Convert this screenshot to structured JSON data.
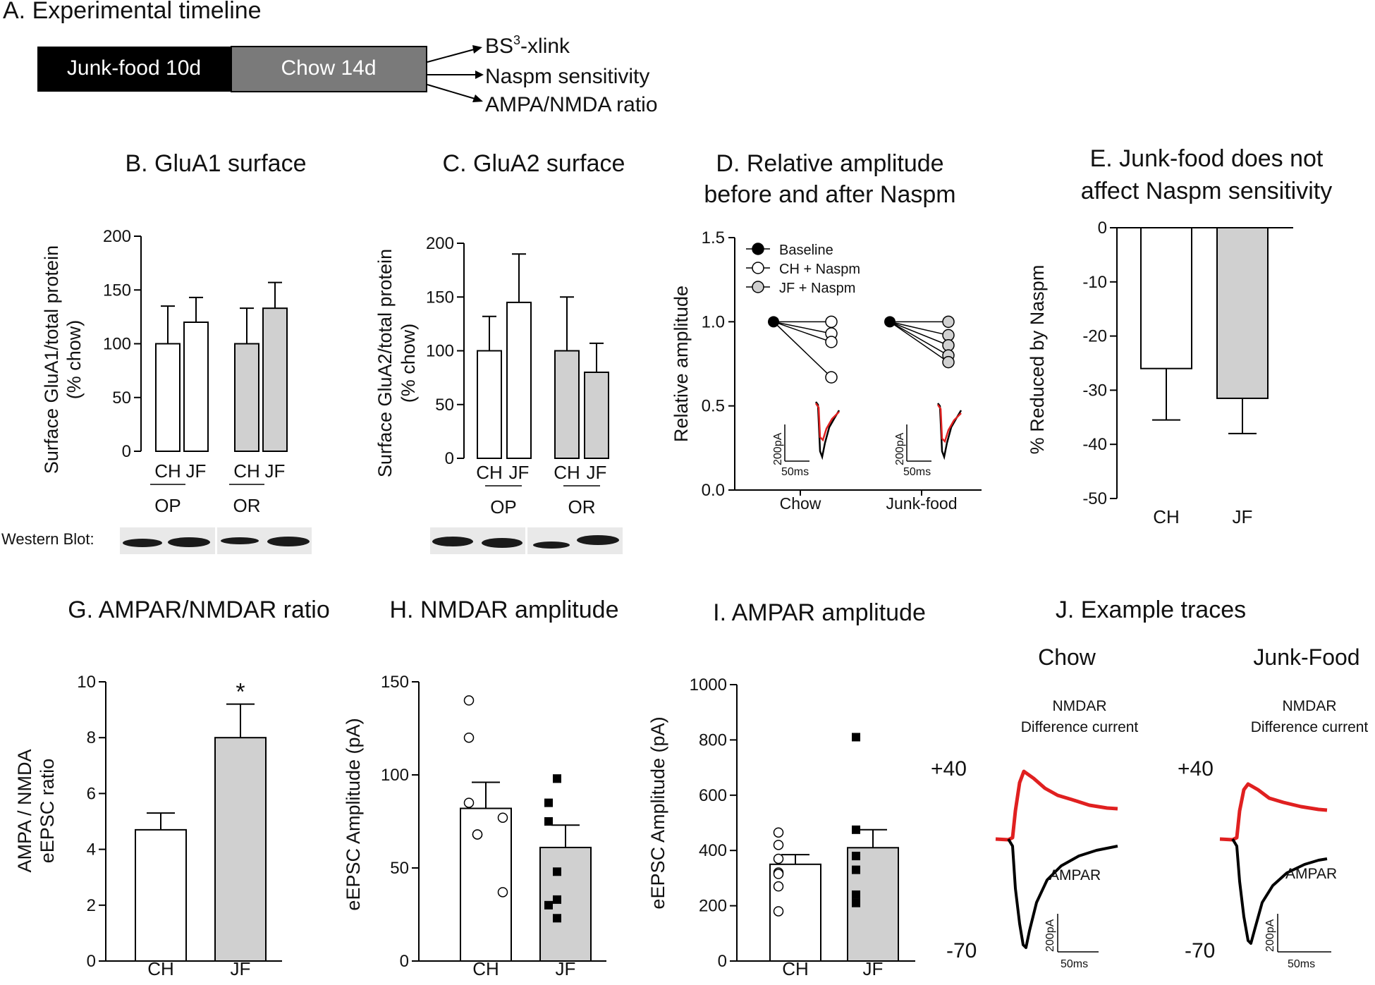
{
  "colors": {
    "white_bar": "#ffffff",
    "gray_bar": "#d0d0d0",
    "junk": "#000000",
    "chow": "#7a7a7a",
    "red_trace": "#e02020",
    "black_trace": "#000000"
  },
  "timeline": {
    "title": "A. Experimental timeline",
    "junk_label": "Junk-food 10d",
    "chow_label": "Chow 14d",
    "outcomes": [
      {
        "base": "BS",
        "sup": "3",
        "rest": "-xlink"
      },
      {
        "base": "Naspm sensitivity",
        "sup": "",
        "rest": ""
      },
      {
        "base": "AMPA/NMDA ratio",
        "sup": "",
        "rest": ""
      }
    ]
  },
  "western_label": "Western Blot:",
  "chart_data": [
    {
      "id": "B",
      "type": "bar",
      "title": "B. GluA1 surface",
      "ylabel": [
        "Surface GluA1/total protein",
        "(% chow)"
      ],
      "ylim": [
        0,
        200
      ],
      "yticks": [
        0,
        50,
        100,
        150,
        200
      ],
      "categories": [
        "CH",
        "JF",
        "CH",
        "JF"
      ],
      "groups": [
        "OP",
        "OR"
      ],
      "values": [
        100,
        120,
        100,
        133
      ],
      "errors": [
        35,
        23,
        33,
        24
      ],
      "fills": [
        "white",
        "white",
        "gray",
        "gray"
      ]
    },
    {
      "id": "C",
      "type": "bar",
      "title": "C. GluA2 surface",
      "ylabel": [
        "Surface GluA2/total protein",
        "(% chow)"
      ],
      "ylim": [
        0,
        200
      ],
      "yticks": [
        0,
        50,
        100,
        150,
        200
      ],
      "categories": [
        "CH",
        "JF",
        "CH",
        "JF"
      ],
      "groups": [
        "OP",
        "OR"
      ],
      "values": [
        100,
        145,
        100,
        80
      ],
      "errors": [
        32,
        45,
        50,
        27
      ],
      "fills": [
        "white",
        "white",
        "gray",
        "gray"
      ]
    },
    {
      "id": "D",
      "type": "line",
      "title": [
        "D. Relative amplitude",
        "before and after Naspm"
      ],
      "ylabel": "Relative amplitude",
      "ylim": [
        0,
        1.5
      ],
      "yticks": [
        "0.0",
        "0.5",
        "1.0",
        "1.5"
      ],
      "categories": [
        "Chow",
        "Junk-food"
      ],
      "legend": [
        "Baseline",
        "CH + Naspm",
        "JF + Naspm"
      ],
      "series": [
        {
          "name": "CH + Naspm",
          "baseline": 1.0,
          "after": [
            1.0,
            0.93,
            0.88,
            0.67
          ]
        },
        {
          "name": "JF + Naspm",
          "baseline": 1.0,
          "after": [
            1.0,
            0.92,
            0.86,
            0.8,
            0.76
          ]
        }
      ],
      "scale": {
        "current": "200pA",
        "time": "50ms"
      }
    },
    {
      "id": "E",
      "type": "bar",
      "title": [
        "E. Junk-food does not",
        "affect Naspm sensitivity"
      ],
      "ylabel": "% Reduced by Naspm",
      "ylim": [
        -50,
        0
      ],
      "yticks": [
        "0",
        "-10",
        "-20",
        "-30",
        "-40",
        "-50"
      ],
      "categories": [
        "CH",
        "JF"
      ],
      "values": [
        -26,
        -31.5
      ],
      "errors": [
        9.5,
        6.5
      ],
      "fills": [
        "white",
        "gray"
      ]
    },
    {
      "id": "G",
      "type": "bar",
      "title": "G. AMPAR/NMDAR ratio",
      "ylabel": [
        "AMPA / NMDA",
        "eEPSC ratio"
      ],
      "ylim": [
        0,
        10
      ],
      "yticks": [
        "0",
        "2",
        "4",
        "6",
        "8",
        "10"
      ],
      "categories": [
        "CH",
        "JF"
      ],
      "values": [
        4.7,
        8.0
      ],
      "errors": [
        0.6,
        1.2
      ],
      "fills": [
        "white",
        "gray"
      ],
      "significance": "*"
    },
    {
      "id": "H",
      "type": "bar",
      "title": "H. NMDAR amplitude",
      "ylabel": "eEPSC Amplitude (pA)",
      "ylim": [
        0,
        150
      ],
      "yticks": [
        "0",
        "50",
        "100",
        "150"
      ],
      "categories": [
        "CH",
        "JF"
      ],
      "values": [
        82,
        61
      ],
      "errors": [
        14,
        12
      ],
      "fills": [
        "white",
        "gray"
      ],
      "points": [
        [
          140,
          120,
          85,
          77,
          68,
          68,
          37
        ],
        [
          98,
          98,
          85,
          75,
          48,
          33,
          30,
          23
        ]
      ]
    },
    {
      "id": "I",
      "type": "bar",
      "title": "I. AMPAR amplitude",
      "ylabel": "eEPSC Amplitude (pA)",
      "ylim": [
        0,
        1000
      ],
      "yticks": [
        "0",
        "200",
        "400",
        "600",
        "800",
        "1000"
      ],
      "categories": [
        "CH",
        "JF"
      ],
      "values": [
        350,
        410
      ],
      "errors": [
        35,
        65
      ],
      "fills": [
        "white",
        "gray"
      ],
      "points": [
        [
          465,
          420,
          370,
          320,
          315,
          270,
          180
        ],
        [
          810,
          475,
          380,
          380,
          330,
          240,
          210
        ]
      ]
    },
    {
      "id": "J",
      "type": "traces",
      "title": "J. Example traces",
      "panels": [
        {
          "label": "Chow"
        },
        {
          "label": "Junk-Food"
        }
      ],
      "nmdar_label": [
        "NMDAR",
        "Difference current"
      ],
      "ampar_label": "AMPAR",
      "pos_label": "+40",
      "neg_label": "-70",
      "scale": {
        "current": "200pA",
        "time": "50ms"
      }
    }
  ]
}
